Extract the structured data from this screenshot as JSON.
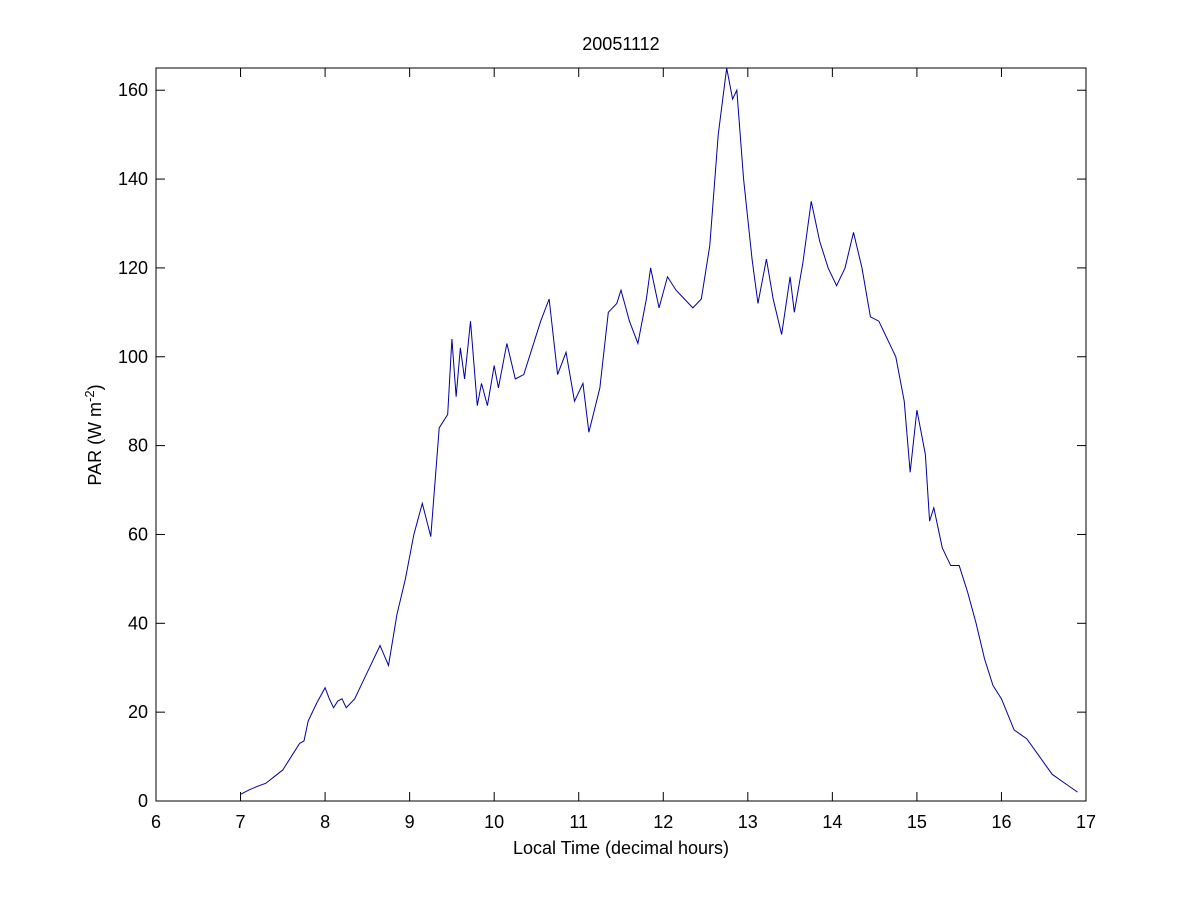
{
  "chart_data": {
    "type": "line",
    "title": "20051112",
    "x_label": "Local Time (decimal hours)",
    "y_label": {
      "text": "PAR (W m",
      "superscript": "-2",
      "suffix": ")"
    },
    "xlim": [
      6,
      17
    ],
    "xticks": [
      6,
      7,
      8,
      9,
      10,
      11,
      12,
      13,
      14,
      15,
      16,
      17
    ],
    "ylim": [
      0,
      165
    ],
    "yticks": [
      0,
      20,
      40,
      60,
      80,
      100,
      120,
      140,
      160
    ],
    "grid": false,
    "series": [
      {
        "color": "#0000a0",
        "x": [
          7.0,
          7.1,
          7.2,
          7.3,
          7.4,
          7.5,
          7.6,
          7.7,
          7.75,
          7.8,
          7.9,
          8.0,
          8.05,
          8.1,
          8.15,
          8.2,
          8.25,
          8.35,
          8.45,
          8.55,
          8.65,
          8.75,
          8.85,
          8.95,
          9.05,
          9.15,
          9.25,
          9.35,
          9.45,
          9.5,
          9.55,
          9.6,
          9.65,
          9.72,
          9.8,
          9.85,
          9.92,
          10.0,
          10.05,
          10.15,
          10.25,
          10.35,
          10.5,
          10.55,
          10.65,
          10.75,
          10.85,
          10.95,
          11.05,
          11.12,
          11.25,
          11.35,
          11.45,
          11.5,
          11.6,
          11.7,
          11.8,
          11.85,
          11.95,
          12.05,
          12.15,
          12.25,
          12.35,
          12.45,
          12.55,
          12.65,
          12.75,
          12.82,
          12.87,
          12.95,
          13.05,
          13.12,
          13.22,
          13.3,
          13.4,
          13.5,
          13.55,
          13.65,
          13.75,
          13.85,
          13.95,
          14.05,
          14.15,
          14.25,
          14.35,
          14.45,
          14.55,
          14.65,
          14.75,
          14.85,
          14.92,
          15.0,
          15.1,
          15.15,
          15.2,
          15.3,
          15.4,
          15.5,
          15.6,
          15.7,
          15.8,
          15.9,
          16.0,
          16.15,
          16.3,
          16.45,
          16.6,
          16.75,
          16.9
        ],
        "values": [
          1.5,
          2.5,
          3.3,
          4,
          5.5,
          7,
          10,
          13,
          13.5,
          18,
          22,
          25.5,
          23,
          21,
          22.5,
          23,
          21,
          23,
          27,
          31,
          35,
          30.5,
          42,
          50,
          60,
          67,
          59.5,
          84,
          87,
          104,
          91,
          102,
          95,
          108,
          89,
          94,
          89,
          98,
          93,
          103,
          95,
          96,
          105,
          108,
          113,
          96,
          101,
          90,
          94,
          83,
          93,
          110,
          112,
          115,
          108,
          103,
          113,
          120,
          111,
          118,
          115,
          113,
          111,
          113,
          125,
          150,
          165,
          158,
          160,
          140,
          122,
          112,
          122,
          113,
          105,
          118,
          110,
          121,
          135,
          126,
          120,
          116,
          120,
          128,
          120,
          109,
          108,
          104,
          100,
          90,
          74,
          88,
          78,
          63,
          66,
          57,
          53,
          53,
          47,
          40,
          32,
          26,
          23,
          16,
          14,
          10,
          6,
          4,
          2
        ]
      }
    ]
  }
}
